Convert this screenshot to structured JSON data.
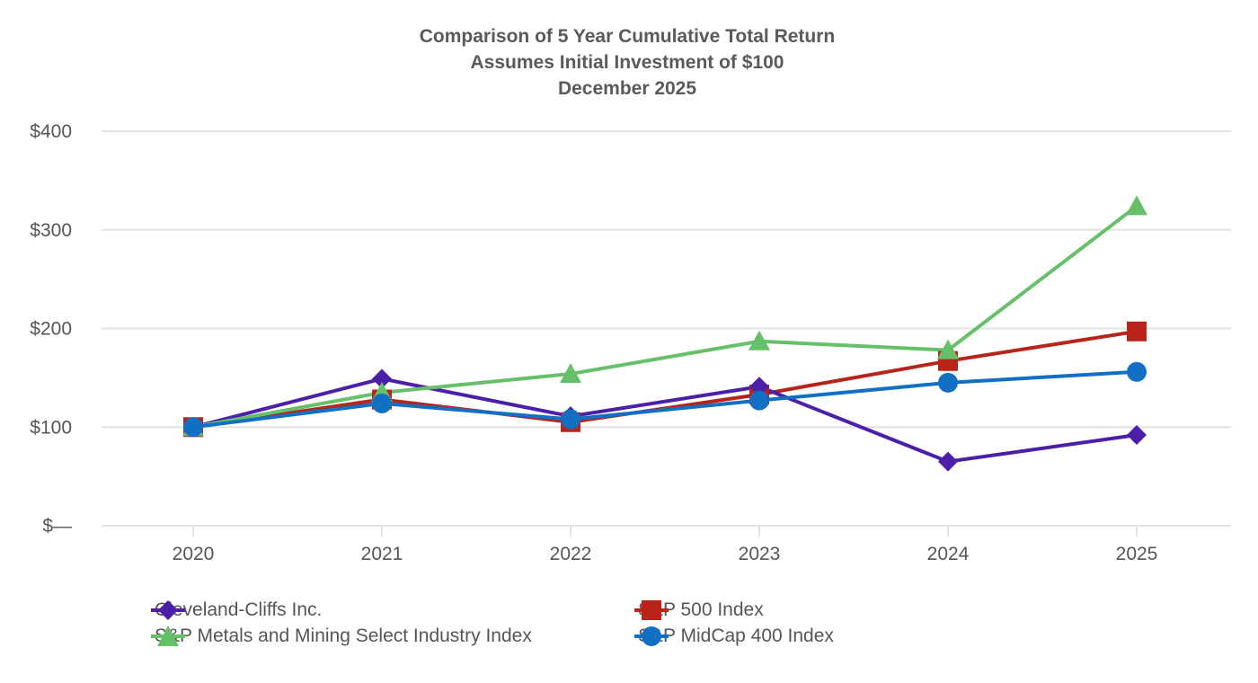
{
  "chart_data": {
    "type": "line",
    "title": [
      "Comparison of 5 Year Cumulative Total Return",
      "Assumes Initial Investment of $100",
      "December 2025"
    ],
    "categories": [
      "2020",
      "2021",
      "2022",
      "2023",
      "2024",
      "2025"
    ],
    "ylim": [
      0,
      400
    ],
    "yticks": [
      {
        "value": 400,
        "label": "$400"
      },
      {
        "value": 300,
        "label": "$300"
      },
      {
        "value": 200,
        "label": "$200"
      },
      {
        "value": 100,
        "label": "$100"
      },
      {
        "value": 0,
        "label": "$—"
      }
    ],
    "grid": true,
    "legend_position": "bottom",
    "series": [
      {
        "name": "Cleveland-Cliffs Inc.",
        "color": "#4b1fa8",
        "marker": "diamond",
        "values": [
          100,
          149,
          111,
          141,
          65,
          92
        ]
      },
      {
        "name": "S&P 500 Index",
        "color": "#b8231a",
        "marker": "square",
        "values": [
          100,
          128,
          105,
          133,
          167,
          197
        ]
      },
      {
        "name": "S&P Metals and Mining Select Industry Index",
        "color": "#66c06a",
        "marker": "triangle",
        "values": [
          100,
          135,
          154,
          187,
          178,
          324
        ]
      },
      {
        "name": "S&P MidCap 400 Index",
        "color": "#1170c4",
        "marker": "circle",
        "values": [
          100,
          124,
          108,
          127,
          145,
          156
        ]
      }
    ]
  }
}
